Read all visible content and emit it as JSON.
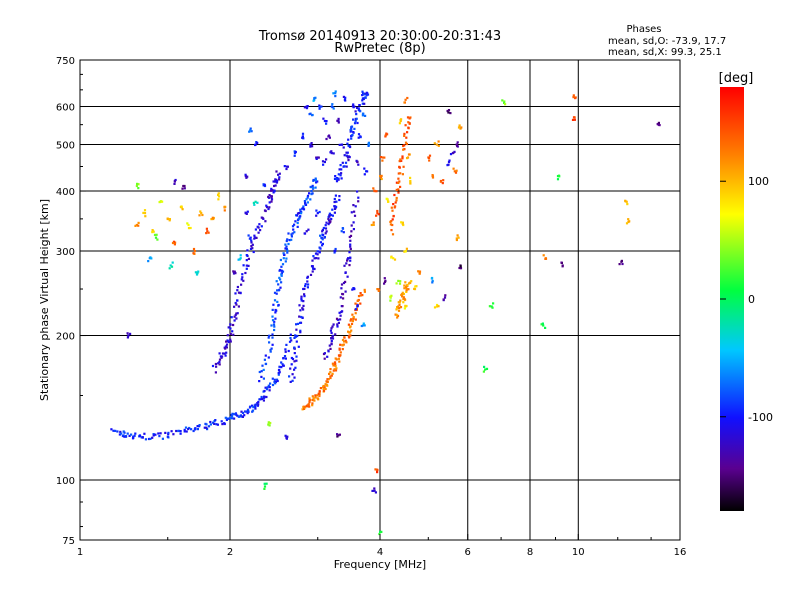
{
  "chart_data": {
    "type": "scatter",
    "title": "Tromsø 20140913 20:30:00-20:31:43",
    "subtitle": "RwPretec (8p)",
    "xlabel": "Frequency [MHz]",
    "ylabel": "Stationary phase Virtual Height [km]",
    "x_scale": "log",
    "y_scale": "log",
    "xlim": [
      1,
      16
    ],
    "ylim": [
      75,
      750
    ],
    "x_ticks": [
      1,
      2,
      4,
      6,
      8,
      10,
      16
    ],
    "x_gridlines": [
      2,
      4,
      6,
      8,
      10
    ],
    "y_ticks": [
      75,
      100,
      200,
      300,
      400,
      500,
      600,
      750
    ],
    "y_gridlines": [
      100,
      200,
      300,
      400,
      500,
      600
    ],
    "grid": true,
    "stats": {
      "heading": "Phases",
      "line1": "mean, sd,O: -73.9, 17.7",
      "line2": "mean, sd,X:  99.3, 25.1"
    },
    "colorbar": {
      "label": "[deg]",
      "range": [
        -180,
        180
      ],
      "ticks": [
        100,
        0,
        -100
      ]
    },
    "traces": [
      {
        "x": [
          1.17,
          1.25,
          1.35,
          1.5,
          1.65,
          1.8,
          1.95,
          2.05,
          2.15,
          2.25,
          2.35,
          2.45,
          2.55,
          2.65
        ],
        "y": [
          126,
          124,
          123,
          124,
          127,
          130,
          133,
          136,
          139,
          143,
          150,
          160,
          175,
          200
        ],
        "phase": -95
      },
      {
        "x": [
          1.85,
          1.95,
          2.0,
          2.05,
          2.1,
          2.2,
          2.3,
          2.4,
          2.45,
          2.5
        ],
        "y": [
          170,
          185,
          200,
          225,
          260,
          300,
          340,
          380,
          410,
          440
        ],
        "phase": -115
      },
      {
        "x": [
          2.3,
          2.4,
          2.45,
          2.5,
          2.55,
          2.6,
          2.7,
          2.8,
          2.9,
          3.0
        ],
        "y": [
          160,
          190,
          220,
          250,
          280,
          310,
          340,
          370,
          400,
          430
        ],
        "phase": -85
      },
      {
        "x": [
          2.65,
          2.7,
          2.75,
          2.8,
          2.9,
          3.0,
          3.1,
          3.2,
          3.3
        ],
        "y": [
          160,
          185,
          210,
          240,
          270,
          300,
          330,
          360,
          390
        ],
        "phase": -105
      },
      {
        "x": [
          3.1,
          3.2,
          3.3,
          3.4,
          3.5,
          3.6
        ],
        "y": [
          180,
          200,
          220,
          260,
          320,
          400
        ],
        "phase": -125
      },
      {
        "x": [
          2.8,
          2.9,
          3.0,
          3.1,
          3.2,
          3.3,
          3.4,
          3.5,
          3.6,
          3.7
        ],
        "y": [
          140,
          145,
          150,
          158,
          168,
          180,
          195,
          210,
          230,
          250
        ],
        "phase": 130
      },
      {
        "x": [
          3.3,
          3.4,
          3.5,
          3.6,
          3.7,
          3.75
        ],
        "y": [
          420,
          460,
          520,
          580,
          630,
          640
        ],
        "phase": -100
      },
      {
        "x": [
          4.2,
          4.3,
          4.4,
          4.5,
          4.6
        ],
        "y": [
          330,
          380,
          440,
          510,
          580
        ],
        "phase": 145
      },
      {
        "x": [
          4.3,
          4.4,
          4.5,
          4.6
        ],
        "y": [
          220,
          235,
          250,
          260
        ],
        "phase": 110
      }
    ],
    "points": [
      {
        "x": 1.3,
        "y": 340,
        "phase": 120
      },
      {
        "x": 1.35,
        "y": 360,
        "phase": 95
      },
      {
        "x": 1.4,
        "y": 330,
        "phase": 80
      },
      {
        "x": 1.45,
        "y": 380,
        "phase": 60
      },
      {
        "x": 1.5,
        "y": 350,
        "phase": 110
      },
      {
        "x": 1.55,
        "y": 310,
        "phase": 140
      },
      {
        "x": 1.6,
        "y": 370,
        "phase": 90
      },
      {
        "x": 1.65,
        "y": 340,
        "phase": 70
      },
      {
        "x": 1.7,
        "y": 300,
        "phase": 130
      },
      {
        "x": 1.75,
        "y": 360,
        "phase": 100
      },
      {
        "x": 1.8,
        "y": 330,
        "phase": 150
      },
      {
        "x": 1.85,
        "y": 350,
        "phase": 115
      },
      {
        "x": 1.9,
        "y": 390,
        "phase": 85
      },
      {
        "x": 1.95,
        "y": 370,
        "phase": 125
      },
      {
        "x": 1.38,
        "y": 290,
        "phase": -60
      },
      {
        "x": 1.52,
        "y": 280,
        "phase": -30
      },
      {
        "x": 1.62,
        "y": 410,
        "phase": -150
      },
      {
        "x": 1.72,
        "y": 270,
        "phase": -20
      },
      {
        "x": 1.3,
        "y": 410,
        "phase": 40
      },
      {
        "x": 1.42,
        "y": 320,
        "phase": 20
      },
      {
        "x": 2.05,
        "y": 270,
        "phase": -130
      },
      {
        "x": 2.1,
        "y": 290,
        "phase": -40
      },
      {
        "x": 2.2,
        "y": 320,
        "phase": -100
      },
      {
        "x": 2.15,
        "y": 360,
        "phase": -110
      },
      {
        "x": 2.25,
        "y": 380,
        "phase": -20
      },
      {
        "x": 2.35,
        "y": 410,
        "phase": -90
      },
      {
        "x": 2.2,
        "y": 540,
        "phase": -80
      },
      {
        "x": 2.25,
        "y": 500,
        "phase": -100
      },
      {
        "x": 2.15,
        "y": 430,
        "phase": -120
      },
      {
        "x": 2.6,
        "y": 450,
        "phase": -110
      },
      {
        "x": 2.7,
        "y": 480,
        "phase": -90
      },
      {
        "x": 2.8,
        "y": 520,
        "phase": -100
      },
      {
        "x": 2.85,
        "y": 600,
        "phase": -110
      },
      {
        "x": 2.9,
        "y": 580,
        "phase": -80
      },
      {
        "x": 2.95,
        "y": 620,
        "phase": -60
      },
      {
        "x": 2.9,
        "y": 500,
        "phase": -110
      },
      {
        "x": 3.0,
        "y": 470,
        "phase": -120
      },
      {
        "x": 3.05,
        "y": 600,
        "phase": -90
      },
      {
        "x": 3.1,
        "y": 560,
        "phase": -100
      },
      {
        "x": 3.1,
        "y": 460,
        "phase": -110
      },
      {
        "x": 3.15,
        "y": 520,
        "phase": -130
      },
      {
        "x": 3.2,
        "y": 600,
        "phase": -80
      },
      {
        "x": 3.2,
        "y": 480,
        "phase": -120
      },
      {
        "x": 3.25,
        "y": 640,
        "phase": -70
      },
      {
        "x": 3.25,
        "y": 430,
        "phase": -100
      },
      {
        "x": 3.3,
        "y": 560,
        "phase": -120
      },
      {
        "x": 3.35,
        "y": 500,
        "phase": -110
      },
      {
        "x": 3.4,
        "y": 620,
        "phase": -100
      },
      {
        "x": 3.45,
        "y": 470,
        "phase": -120
      },
      {
        "x": 3.5,
        "y": 540,
        "phase": -90
      },
      {
        "x": 3.55,
        "y": 600,
        "phase": -110
      },
      {
        "x": 3.6,
        "y": 460,
        "phase": -130
      },
      {
        "x": 3.65,
        "y": 520,
        "phase": -100
      },
      {
        "x": 3.7,
        "y": 580,
        "phase": -80
      },
      {
        "x": 3.75,
        "y": 440,
        "phase": -90
      },
      {
        "x": 3.8,
        "y": 500,
        "phase": -60
      },
      {
        "x": 2.75,
        "y": 360,
        "phase": -110
      },
      {
        "x": 2.85,
        "y": 330,
        "phase": -120
      },
      {
        "x": 3.0,
        "y": 360,
        "phase": -100
      },
      {
        "x": 3.05,
        "y": 320,
        "phase": -90
      },
      {
        "x": 3.15,
        "y": 350,
        "phase": -130
      },
      {
        "x": 3.25,
        "y": 300,
        "phase": -100
      },
      {
        "x": 3.35,
        "y": 330,
        "phase": -80
      },
      {
        "x": 3.45,
        "y": 290,
        "phase": -110
      },
      {
        "x": 3.55,
        "y": 250,
        "phase": -100
      },
      {
        "x": 3.6,
        "y": 230,
        "phase": -90
      },
      {
        "x": 3.7,
        "y": 210,
        "phase": -60
      },
      {
        "x": 3.9,
        "y": 400,
        "phase": 140
      },
      {
        "x": 3.95,
        "y": 360,
        "phase": 150
      },
      {
        "x": 4.0,
        "y": 430,
        "phase": 120
      },
      {
        "x": 4.05,
        "y": 470,
        "phase": 135
      },
      {
        "x": 4.1,
        "y": 520,
        "phase": 150
      },
      {
        "x": 4.15,
        "y": 380,
        "phase": 80
      },
      {
        "x": 4.5,
        "y": 620,
        "phase": 130
      },
      {
        "x": 4.4,
        "y": 560,
        "phase": 100
      },
      {
        "x": 4.55,
        "y": 470,
        "phase": 110
      },
      {
        "x": 4.6,
        "y": 420,
        "phase": 90
      },
      {
        "x": 4.45,
        "y": 340,
        "phase": 85
      },
      {
        "x": 4.5,
        "y": 300,
        "phase": 90
      },
      {
        "x": 5.0,
        "y": 470,
        "phase": 140
      },
      {
        "x": 5.1,
        "y": 430,
        "phase": 130
      },
      {
        "x": 5.2,
        "y": 500,
        "phase": 110
      },
      {
        "x": 5.3,
        "y": 420,
        "phase": 145
      },
      {
        "x": 5.5,
        "y": 460,
        "phase": -110
      },
      {
        "x": 5.6,
        "y": 480,
        "phase": -120
      },
      {
        "x": 5.7,
        "y": 500,
        "phase": -140
      },
      {
        "x": 5.65,
        "y": 440,
        "phase": 130
      },
      {
        "x": 5.8,
        "y": 540,
        "phase": 110
      },
      {
        "x": 5.5,
        "y": 590,
        "phase": -150
      },
      {
        "x": 5.75,
        "y": 320,
        "phase": 100
      },
      {
        "x": 5.8,
        "y": 280,
        "phase": -160
      },
      {
        "x": 4.2,
        "y": 240,
        "phase": 50
      },
      {
        "x": 4.35,
        "y": 260,
        "phase": 40
      },
      {
        "x": 4.5,
        "y": 230,
        "phase": 80
      },
      {
        "x": 4.7,
        "y": 250,
        "phase": 95
      },
      {
        "x": 4.8,
        "y": 270,
        "phase": 130
      },
      {
        "x": 5.1,
        "y": 260,
        "phase": -60
      },
      {
        "x": 5.2,
        "y": 230,
        "phase": 90
      },
      {
        "x": 5.4,
        "y": 240,
        "phase": -130
      },
      {
        "x": 4.1,
        "y": 260,
        "phase": -140
      },
      {
        "x": 3.95,
        "y": 250,
        "phase": 120
      },
      {
        "x": 3.85,
        "y": 340,
        "phase": 110
      },
      {
        "x": 4.25,
        "y": 290,
        "phase": 80
      },
      {
        "x": 7.1,
        "y": 615,
        "phase": 40
      },
      {
        "x": 9.85,
        "y": 625,
        "phase": 150
      },
      {
        "x": 9.8,
        "y": 570,
        "phase": 150
      },
      {
        "x": 14.5,
        "y": 550,
        "phase": -140
      },
      {
        "x": 9.1,
        "y": 430,
        "phase": 10
      },
      {
        "x": 12.5,
        "y": 380,
        "phase": 100
      },
      {
        "x": 12.6,
        "y": 345,
        "phase": 100
      },
      {
        "x": 8.6,
        "y": 290,
        "phase": 120
      },
      {
        "x": 9.3,
        "y": 280,
        "phase": -150
      },
      {
        "x": 12.2,
        "y": 285,
        "phase": -150
      },
      {
        "x": 6.7,
        "y": 230,
        "phase": 10
      },
      {
        "x": 8.5,
        "y": 210,
        "phase": 10
      },
      {
        "x": 6.5,
        "y": 170,
        "phase": 10
      },
      {
        "x": 3.95,
        "y": 105,
        "phase": 150
      },
      {
        "x": 3.9,
        "y": 95,
        "phase": -120
      },
      {
        "x": 4.0,
        "y": 78,
        "phase": 10
      },
      {
        "x": 2.35,
        "y": 97,
        "phase": 10
      },
      {
        "x": 3.3,
        "y": 124,
        "phase": -150
      },
      {
        "x": 2.6,
        "y": 122,
        "phase": -110
      },
      {
        "x": 2.4,
        "y": 130,
        "phase": 40
      },
      {
        "x": 1.25,
        "y": 200,
        "phase": -120
      },
      {
        "x": 1.55,
        "y": 420,
        "phase": -120
      }
    ]
  }
}
